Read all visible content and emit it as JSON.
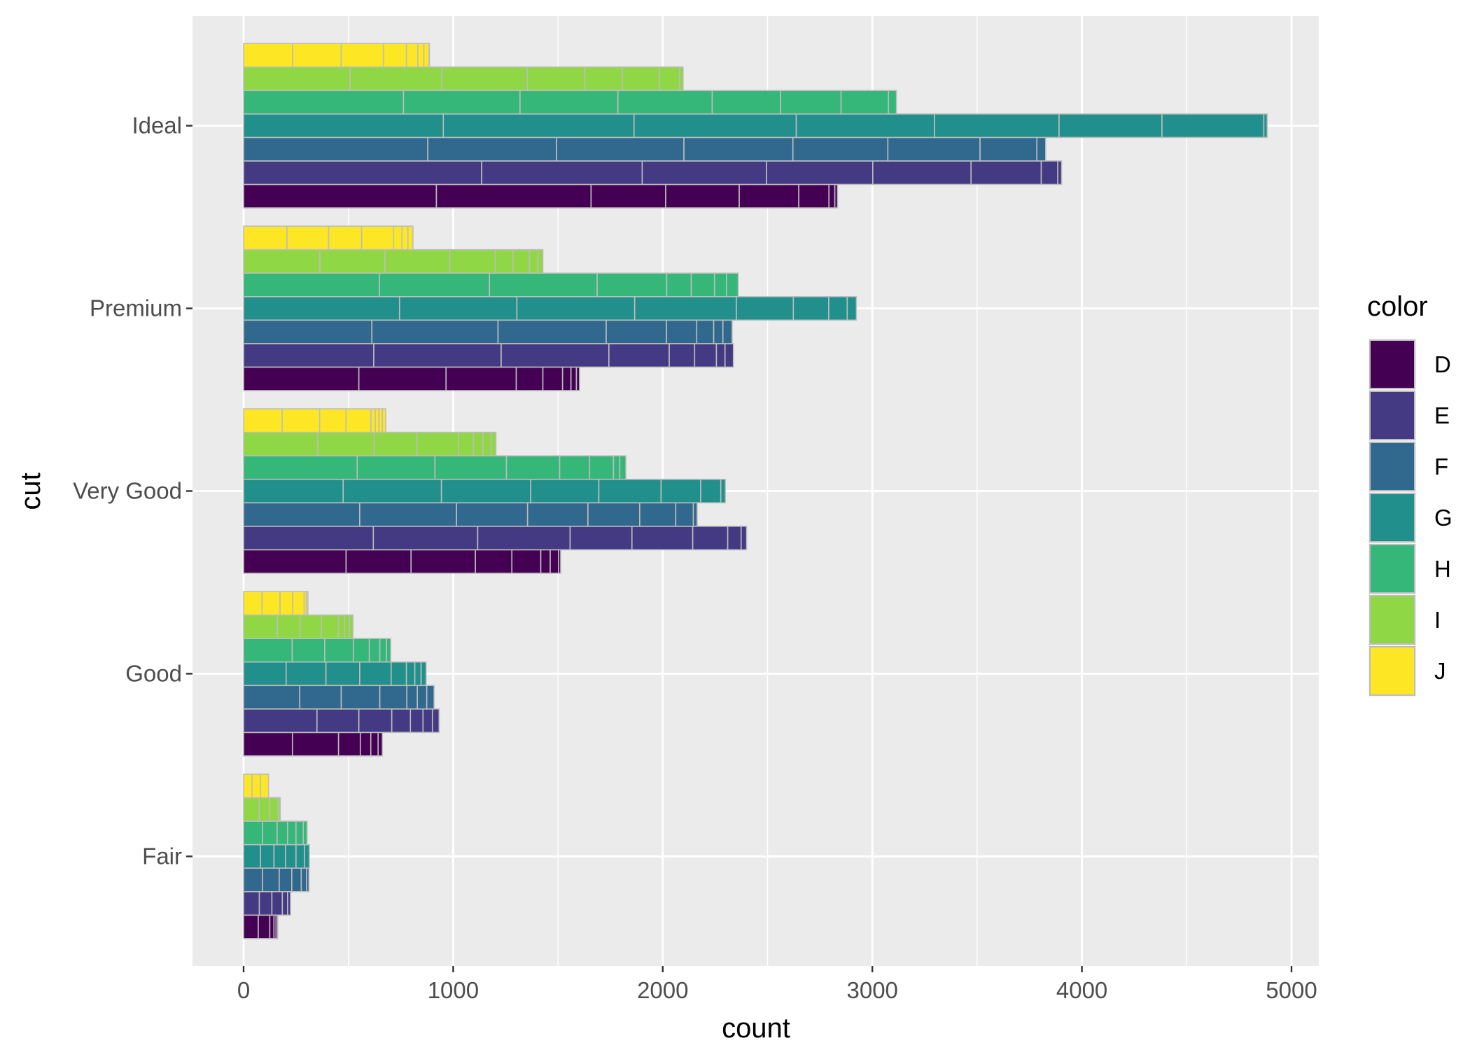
{
  "chart_data": {
    "type": "bar",
    "orientation": "horizontal",
    "position": "dodge",
    "xlabel": "count",
    "ylabel": "cut",
    "xlim": [
      0,
      5000
    ],
    "xticks": [
      0,
      1000,
      2000,
      3000,
      4000,
      5000
    ],
    "categories": [
      "Fair",
      "Good",
      "Very Good",
      "Premium",
      "Ideal"
    ],
    "grid": true,
    "legend": {
      "title": "color",
      "placement": "right",
      "entries": [
        "D",
        "E",
        "F",
        "G",
        "H",
        "I",
        "J"
      ]
    },
    "colors": {
      "D": "#440154",
      "E": "#443A83",
      "F": "#31688E",
      "G": "#21908C",
      "H": "#35B779",
      "I": "#8FD744",
      "J": "#FDE725"
    },
    "outline_color": "#BDBDBD",
    "panel_background": "#EBEBEB",
    "bars": {
      "Ideal": {
        "D": [
          920,
          738,
          356,
          351,
          284,
          144,
          28,
          13
        ],
        "E": [
          1136,
          766,
          593,
          507,
          469,
          335,
          79,
          18
        ],
        "F": [
          879,
          614,
          608,
          520,
          453,
          440,
          271,
          42
        ],
        "G": [
          953,
          910,
          774,
          660,
          594,
          491,
          486,
          16
        ],
        "H": [
          763,
          556,
          467,
          450,
          326,
          289,
          226,
          38
        ],
        "I": [
          508,
          438,
          408,
          274,
          179,
          178,
          95,
          17
        ],
        "J": [
          234,
          232,
          201,
          110,
          54,
          29,
          25,
          2
        ]
      },
      "Premium": {
        "D": [
          550,
          416,
          335,
          127,
          94,
          40,
          26,
          15
        ],
        "E": [
          621,
          608,
          514,
          288,
          121,
          104,
          41,
          40
        ],
        "F": [
          612,
          602,
          516,
          288,
          144,
          81,
          44,
          44
        ],
        "G": [
          744,
          560,
          562,
          485,
          272,
          169,
          88,
          44
        ],
        "H": [
          648,
          525,
          514,
          332,
          117,
          111,
          57,
          56
        ],
        "I": [
          364,
          311,
          309,
          217,
          84,
          80,
          40,
          23
        ],
        "J": [
          207,
          199,
          157,
          153,
          40,
          28,
          24
        ]
      },
      "Very Good": {
        "D": [
          489,
          310,
          307,
          174,
          138,
          45,
          40,
          10
        ],
        "E": [
          619,
          498,
          441,
          295,
          290,
          167,
          64,
          26
        ],
        "F": [
          554,
          462,
          339,
          288,
          247,
          172,
          84,
          18
        ],
        "G": [
          475,
          469,
          426,
          325,
          297,
          189,
          96,
          22
        ],
        "H": [
          542,
          371,
          341,
          254,
          143,
          114,
          30,
          29
        ],
        "I": [
          354,
          269,
          204,
          198,
          72,
          45,
          40,
          22
        ],
        "J": [
          184,
          179,
          126,
          119,
          20,
          18,
          16,
          16
        ]
      },
      "Good": {
        "D": [
          233,
          220,
          104,
          50,
          35,
          20
        ],
        "E": [
          350,
          200,
          157,
          89,
          60,
          45,
          32
        ],
        "F": [
          268,
          198,
          184,
          129,
          50,
          45,
          35
        ],
        "G": [
          203,
          190,
          161,
          150,
          73,
          40,
          30,
          24
        ],
        "H": [
          232,
          155,
          137,
          76,
          50,
          32,
          20
        ],
        "I": [
          161,
          109,
          102,
          80,
          30,
          22,
          18
        ],
        "J": [
          88,
          86,
          60,
          55,
          10,
          8
        ]
      },
      "Fair": {
        "D": [
          70,
          55,
          20,
          10,
          8
        ],
        "E": [
          75,
          60,
          50,
          25,
          14
        ],
        "F": [
          90,
          80,
          60,
          45,
          25,
          12
        ],
        "G": [
          80,
          65,
          55,
          50,
          40,
          24
        ],
        "H": [
          90,
          70,
          50,
          40,
          35,
          18
        ],
        "I": [
          75,
          50,
          40,
          10
        ],
        "J": [
          40,
          40,
          39
        ]
      }
    }
  }
}
